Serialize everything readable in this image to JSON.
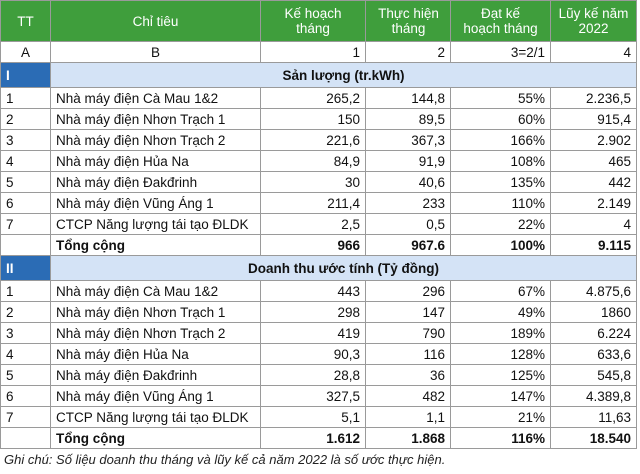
{
  "table": {
    "header": [
      "TT",
      "Chỉ tiêu",
      "Kế hoạch tháng",
      "Thực hiện tháng",
      "Đạt kế hoạch tháng",
      "Lũy kế năm 2022"
    ],
    "index_row": [
      "A",
      "B",
      "1",
      "2",
      "3=2/1",
      "4"
    ],
    "sections": [
      {
        "number": "I",
        "title": "Sản lượng (tr.kWh)",
        "rows": [
          [
            "1",
            "Nhà máy điện Cà Mau 1&2",
            "265,2",
            "144,8",
            "55%",
            "2.236,5"
          ],
          [
            "2",
            "Nhà máy điện Nhơn Trạch  1",
            "150",
            "89,5",
            "60%",
            "915,4"
          ],
          [
            "3",
            "Nhà máy điện Nhơn Trạch  2",
            "221,6",
            "367,3",
            "166%",
            "2.902"
          ],
          [
            "4",
            "Nhà máy điện Hủa Na",
            "84,9",
            "91,9",
            "108%",
            "465"
          ],
          [
            "5",
            "Nhà máy điện Đakđrinh",
            "30",
            "40,6",
            "135%",
            "442"
          ],
          [
            "6",
            "Nhà máy điện Vũng Áng 1",
            "211,4",
            "233",
            "110%",
            "2.149"
          ],
          [
            "7",
            "CTCP Năng lượng tái tạo ĐLDK",
            "2,5",
            "0,5",
            "22%",
            "4"
          ]
        ],
        "total": [
          "Tổng cộng",
          "966",
          "967.6",
          "100%",
          "9.115"
        ]
      },
      {
        "number": "II",
        "title": "Doanh thu ước tính (Tỷ đồng)",
        "rows": [
          [
            "1",
            "Nhà máy điện Cà Mau 1&2",
            "443",
            "296",
            "67%",
            "4.875,6"
          ],
          [
            "2",
            "Nhà máy điện Nhơn Trạch  1",
            "298",
            "147",
            "49%",
            "1860"
          ],
          [
            "3",
            "Nhà máy điện Nhơn Trạch  2",
            "419",
            "790",
            "189%",
            "6.224"
          ],
          [
            "4",
            "Nhà máy điện Hủa Na",
            "90,3",
            "116",
            "128%",
            "633,6"
          ],
          [
            "5",
            "Nhà máy điện Đakđrinh",
            "28,8",
            "36",
            "125%",
            "545,8"
          ],
          [
            "6",
            "Nhà máy điện Vũng Áng 1",
            "327,5",
            "482",
            "147%",
            "4.389,8"
          ],
          [
            "7",
            "CTCP Năng lượng tái tạo ĐLDK",
            "5,1",
            "1,1",
            "21%",
            "11,63"
          ]
        ],
        "total": [
          "Tổng cộng",
          "1.612",
          "1.868",
          "116%",
          "18.540"
        ]
      }
    ]
  },
  "note": "Ghi chú: Số liệu doanh thu tháng và lũy kế cả năm 2022 là số ước thực hiện."
}
